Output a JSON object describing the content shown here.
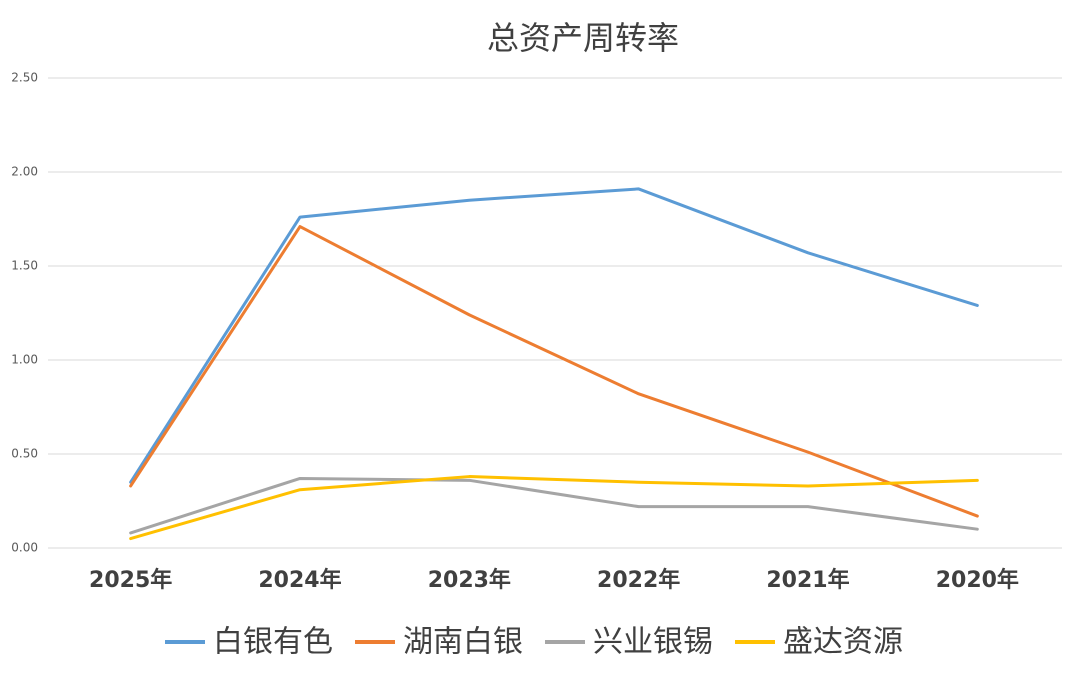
{
  "chart_data": {
    "type": "line",
    "title": "总资产周转率",
    "categories": [
      "2025年",
      "2024年",
      "2023年",
      "2022年",
      "2021年",
      "2020年"
    ],
    "series": [
      {
        "name": "白银有色",
        "color": "#5b9bd5",
        "values": [
          0.35,
          1.76,
          1.85,
          1.91,
          1.57,
          1.29
        ]
      },
      {
        "name": "湖南白银",
        "color": "#ed7d31",
        "values": [
          0.33,
          1.71,
          1.24,
          0.82,
          0.51,
          0.17
        ]
      },
      {
        "name": "兴业银锡",
        "color": "#a5a5a5",
        "values": [
          0.08,
          0.37,
          0.36,
          0.22,
          0.22,
          0.1
        ]
      },
      {
        "name": "盛达资源",
        "color": "#ffc000",
        "values": [
          0.05,
          0.31,
          0.38,
          0.35,
          0.33,
          0.36
        ]
      }
    ],
    "ylim": [
      0,
      2.5
    ],
    "yticks": [
      {
        "value": 0,
        "label": "0.00"
      },
      {
        "value": 0.5,
        "label": "0.50"
      },
      {
        "value": 1,
        "label": "1.00"
      },
      {
        "value": 1.5,
        "label": "1.50"
      },
      {
        "value": 2,
        "label": "2.00"
      },
      {
        "value": 2.5,
        "label": "2.50"
      }
    ],
    "grid": true,
    "legend": "bottom"
  }
}
